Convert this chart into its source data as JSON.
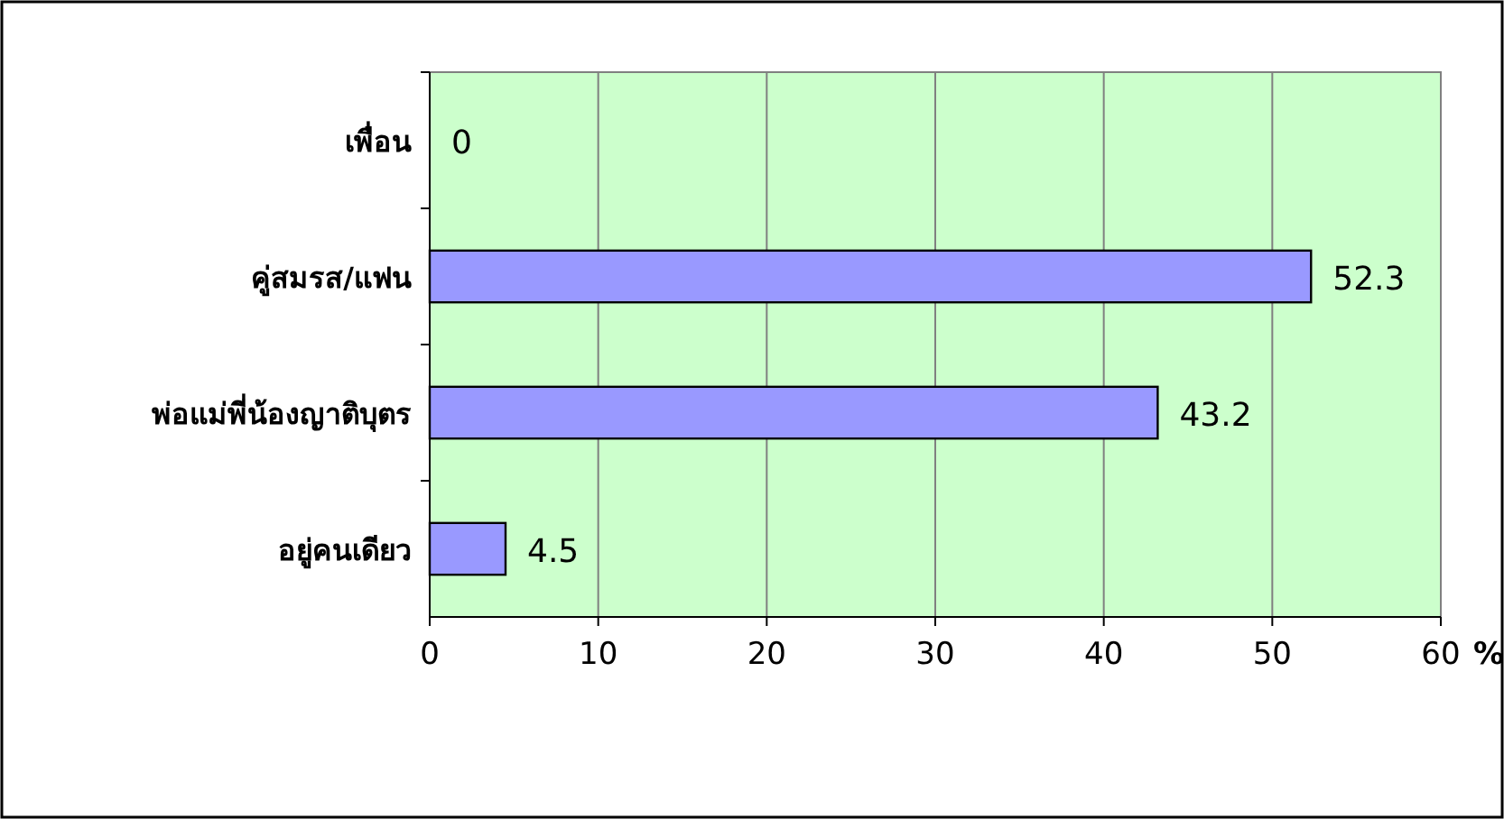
{
  "chart_data": {
    "type": "bar",
    "orientation": "horizontal",
    "categories": [
      "เพื่อน",
      "คู่สมรส/แฟน",
      "พ่อแม่พี่น้องญาติบุตร",
      "อยู่คนเดียว"
    ],
    "values": [
      0,
      52.3,
      43.2,
      4.5
    ],
    "color": "#9999ff",
    "xlim": [
      0,
      60
    ],
    "xticks": [
      0,
      10,
      20,
      30,
      40,
      50,
      60
    ],
    "xlabel": "%",
    "grid": "x",
    "data_labels": true
  }
}
